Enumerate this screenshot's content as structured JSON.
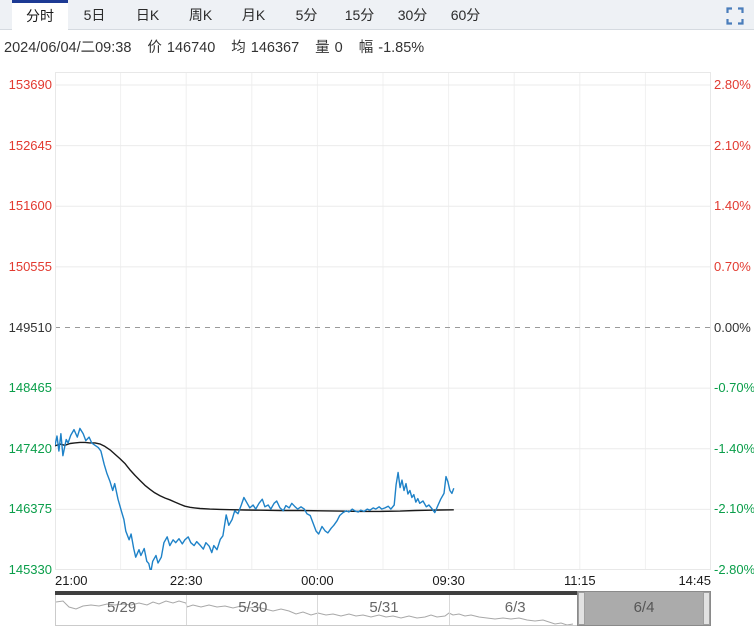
{
  "colors": {
    "up": "#e23a30",
    "down": "#0a9e4a",
    "price_line": "#1e82c8",
    "avg_line": "#1a1a1a",
    "active_tab_accent": "#1d3a94",
    "icon_blue": "#4a7dbb",
    "grid": "#ebebeb",
    "dashed_mid": "#9a9a9a"
  },
  "tabs": {
    "items": [
      {
        "label": "分时",
        "active": true
      },
      {
        "label": "5日",
        "active": false
      },
      {
        "label": "日K",
        "active": false
      },
      {
        "label": "周K",
        "active": false
      },
      {
        "label": "月K",
        "active": false
      },
      {
        "label": "5分",
        "active": false
      },
      {
        "label": "15分",
        "active": false
      },
      {
        "label": "30分",
        "active": false
      },
      {
        "label": "60分",
        "active": false
      }
    ],
    "fullscreen_icon": "fullscreen"
  },
  "info_bar": {
    "datetime": "2024/06/04/二09:38",
    "price_label": "价",
    "price": "146740",
    "avg_label": "均",
    "avg": "146367",
    "volume_label": "量",
    "volume": "0",
    "change_label": "幅",
    "change": "-1.85%"
  },
  "chart_data": {
    "type": "line",
    "title": "intraday time-share chart",
    "x_axis": {
      "labels": [
        "21:00",
        "22:30",
        "00:00",
        "09:30",
        "11:15",
        "14:45"
      ],
      "label_positions": [
        0,
        0.2,
        0.4,
        0.6,
        0.8,
        1
      ],
      "gridline_count": 11
    },
    "y_axis": {
      "price_levels": [
        "153690",
        "152645",
        "151600",
        "150555",
        "149510",
        "148465",
        "147420",
        "146375",
        "145330"
      ],
      "pct_levels": [
        "2.80%",
        "2.10%",
        "1.40%",
        "0.70%",
        "0.00%",
        "-0.70%",
        "-1.40%",
        "-2.10%",
        "-2.80%"
      ],
      "ylim": [
        145330,
        153690
      ],
      "mid_price": 149510,
      "grid": true
    },
    "legend_position": "none",
    "series": [
      {
        "name": "price",
        "color_key": "price_line",
        "points": [
          [
            0.0,
            147480
          ],
          [
            0.003,
            147640
          ],
          [
            0.006,
            147380
          ],
          [
            0.009,
            147680
          ],
          [
            0.012,
            147300
          ],
          [
            0.017,
            147580
          ],
          [
            0.02,
            147520
          ],
          [
            0.024,
            147650
          ],
          [
            0.029,
            147750
          ],
          [
            0.034,
            147620
          ],
          [
            0.038,
            147770
          ],
          [
            0.043,
            147680
          ],
          [
            0.047,
            147560
          ],
          [
            0.052,
            147620
          ],
          [
            0.056,
            147520
          ],
          [
            0.061,
            147480
          ],
          [
            0.066,
            147440
          ],
          [
            0.07,
            147380
          ],
          [
            0.075,
            147150
          ],
          [
            0.079,
            147000
          ],
          [
            0.084,
            146850
          ],
          [
            0.088,
            146700
          ],
          [
            0.091,
            146820
          ],
          [
            0.096,
            146550
          ],
          [
            0.101,
            146350
          ],
          [
            0.105,
            146200
          ],
          [
            0.108,
            146000
          ],
          [
            0.113,
            145850
          ],
          [
            0.116,
            145950
          ],
          [
            0.12,
            145700
          ],
          [
            0.123,
            145550
          ],
          [
            0.128,
            145680
          ],
          [
            0.131,
            145580
          ],
          [
            0.136,
            145700
          ],
          [
            0.14,
            145480
          ],
          [
            0.143,
            145440
          ],
          [
            0.146,
            145290
          ],
          [
            0.149,
            145480
          ],
          [
            0.154,
            145580
          ],
          [
            0.157,
            145450
          ],
          [
            0.162,
            145550
          ],
          [
            0.166,
            145800
          ],
          [
            0.171,
            145900
          ],
          [
            0.175,
            145750
          ],
          [
            0.18,
            145850
          ],
          [
            0.184,
            145800
          ],
          [
            0.189,
            145870
          ],
          [
            0.194,
            145780
          ],
          [
            0.198,
            145850
          ],
          [
            0.203,
            145900
          ],
          [
            0.207,
            145800
          ],
          [
            0.212,
            145750
          ],
          [
            0.216,
            145820
          ],
          [
            0.221,
            145760
          ],
          [
            0.226,
            145690
          ],
          [
            0.23,
            145800
          ],
          [
            0.235,
            145740
          ],
          [
            0.239,
            145630
          ],
          [
            0.242,
            145750
          ],
          [
            0.247,
            145680
          ],
          [
            0.252,
            145860
          ],
          [
            0.256,
            145920
          ],
          [
            0.261,
            146280
          ],
          [
            0.265,
            146100
          ],
          [
            0.27,
            146200
          ],
          [
            0.274,
            146350
          ],
          [
            0.279,
            146300
          ],
          [
            0.284,
            146450
          ],
          [
            0.288,
            146580
          ],
          [
            0.293,
            146480
          ],
          [
            0.297,
            146400
          ],
          [
            0.302,
            146450
          ],
          [
            0.306,
            146380
          ],
          [
            0.311,
            146480
          ],
          [
            0.316,
            146550
          ],
          [
            0.32,
            146420
          ],
          [
            0.325,
            146450
          ],
          [
            0.329,
            146380
          ],
          [
            0.334,
            146480
          ],
          [
            0.338,
            146520
          ],
          [
            0.343,
            146400
          ],
          [
            0.348,
            146350
          ],
          [
            0.352,
            146440
          ],
          [
            0.357,
            146400
          ],
          [
            0.361,
            146480
          ],
          [
            0.366,
            146420
          ],
          [
            0.37,
            146380
          ],
          [
            0.375,
            146420
          ],
          [
            0.38,
            146380
          ],
          [
            0.384,
            146300
          ],
          [
            0.389,
            146270
          ],
          [
            0.393,
            146150
          ],
          [
            0.398,
            146000
          ],
          [
            0.402,
            145950
          ],
          [
            0.407,
            146080
          ],
          [
            0.412,
            146000
          ],
          [
            0.416,
            145970
          ],
          [
            0.421,
            146050
          ],
          [
            0.425,
            146100
          ],
          [
            0.43,
            146180
          ],
          [
            0.434,
            146270
          ],
          [
            0.439,
            146320
          ],
          [
            0.444,
            146350
          ],
          [
            0.448,
            146330
          ],
          [
            0.453,
            146380
          ],
          [
            0.457,
            146350
          ],
          [
            0.462,
            146330
          ],
          [
            0.466,
            146360
          ],
          [
            0.471,
            146340
          ],
          [
            0.476,
            146380
          ],
          [
            0.48,
            146360
          ],
          [
            0.485,
            146400
          ],
          [
            0.489,
            146380
          ],
          [
            0.494,
            146420
          ],
          [
            0.498,
            146380
          ],
          [
            0.503,
            146400
          ],
          [
            0.508,
            146430
          ],
          [
            0.512,
            146380
          ],
          [
            0.517,
            146450
          ],
          [
            0.52,
            146800
          ],
          [
            0.523,
            147010
          ],
          [
            0.526,
            146750
          ],
          [
            0.529,
            146880
          ],
          [
            0.532,
            146700
          ],
          [
            0.535,
            146820
          ],
          [
            0.538,
            146640
          ],
          [
            0.541,
            146700
          ],
          [
            0.544,
            146580
          ],
          [
            0.547,
            146630
          ],
          [
            0.55,
            146500
          ],
          [
            0.553,
            146560
          ],
          [
            0.556,
            146480
          ],
          [
            0.561,
            146520
          ],
          [
            0.566,
            146420
          ],
          [
            0.57,
            146450
          ],
          [
            0.575,
            146380
          ],
          [
            0.579,
            146320
          ],
          [
            0.584,
            146450
          ],
          [
            0.588,
            146550
          ],
          [
            0.593,
            146650
          ],
          [
            0.596,
            146940
          ],
          [
            0.599,
            146850
          ],
          [
            0.602,
            146700
          ],
          [
            0.605,
            146650
          ],
          [
            0.608,
            146740
          ]
        ]
      },
      {
        "name": "average",
        "color_key": "avg_line",
        "points": [
          [
            0.0,
            147470
          ],
          [
            0.008,
            147500
          ],
          [
            0.015,
            147480
          ],
          [
            0.023,
            147510
          ],
          [
            0.03,
            147520
          ],
          [
            0.038,
            147530
          ],
          [
            0.046,
            147530
          ],
          [
            0.053,
            147520
          ],
          [
            0.061,
            147520
          ],
          [
            0.069,
            147500
          ],
          [
            0.076,
            147460
          ],
          [
            0.084,
            147400
          ],
          [
            0.091,
            147330
          ],
          [
            0.099,
            147250
          ],
          [
            0.107,
            147160
          ],
          [
            0.114,
            147060
          ],
          [
            0.122,
            146960
          ],
          [
            0.13,
            146870
          ],
          [
            0.137,
            146790
          ],
          [
            0.145,
            146720
          ],
          [
            0.152,
            146660
          ],
          [
            0.16,
            146610
          ],
          [
            0.168,
            146570
          ],
          [
            0.175,
            146540
          ],
          [
            0.183,
            146500
          ],
          [
            0.191,
            146460
          ],
          [
            0.198,
            146430
          ],
          [
            0.206,
            146410
          ],
          [
            0.213,
            146400
          ],
          [
            0.221,
            146390
          ],
          [
            0.236,
            146380
          ],
          [
            0.252,
            146375
          ],
          [
            0.267,
            146370
          ],
          [
            0.29,
            146365
          ],
          [
            0.313,
            146360
          ],
          [
            0.343,
            146355
          ],
          [
            0.373,
            146355
          ],
          [
            0.404,
            146350
          ],
          [
            0.434,
            146345
          ],
          [
            0.465,
            146340
          ],
          [
            0.495,
            146340
          ],
          [
            0.526,
            146345
          ],
          [
            0.549,
            146355
          ],
          [
            0.572,
            146360
          ],
          [
            0.587,
            146365
          ],
          [
            0.608,
            146367
          ]
        ]
      }
    ]
  },
  "navigator": {
    "days": [
      {
        "label": "5/29",
        "selected": false
      },
      {
        "label": "5/30",
        "selected": false
      },
      {
        "label": "5/31",
        "selected": false
      },
      {
        "label": "6/3",
        "selected": false
      },
      {
        "label": "6/4",
        "selected": true
      }
    ],
    "label_centers": [
      0.1,
      0.3,
      0.5,
      0.7,
      0.9
    ],
    "separators": [
      0.2,
      0.4,
      0.6
    ],
    "selected_range": [
      0.8,
      1.0
    ],
    "sparkline": [
      [
        0,
        10
      ],
      [
        7,
        9
      ],
      [
        13,
        15
      ],
      [
        20,
        17
      ],
      [
        27,
        14
      ],
      [
        35,
        13
      ],
      [
        43,
        14
      ],
      [
        51,
        12
      ],
      [
        59,
        13
      ],
      [
        67,
        12
      ],
      [
        75,
        13
      ],
      [
        83,
        11
      ],
      [
        91,
        13
      ],
      [
        97,
        10
      ],
      [
        103,
        12
      ],
      [
        110,
        9
      ],
      [
        117,
        11
      ],
      [
        123,
        9
      ],
      [
        130,
        11
      ],
      [
        131,
        15
      ],
      [
        137,
        13
      ],
      [
        145,
        15
      ],
      [
        153,
        13
      ],
      [
        161,
        15
      ],
      [
        169,
        14
      ],
      [
        177,
        16
      ],
      [
        185,
        14
      ],
      [
        193,
        16
      ],
      [
        201,
        15
      ],
      [
        209,
        17
      ],
      [
        217,
        19
      ],
      [
        225,
        17
      ],
      [
        233,
        19
      ],
      [
        240,
        22
      ],
      [
        247,
        20
      ],
      [
        255,
        23
      ],
      [
        262,
        21
      ],
      [
        270,
        23
      ],
      [
        277,
        22
      ],
      [
        285,
        24
      ],
      [
        293,
        22
      ],
      [
        300,
        24
      ],
      [
        307,
        23
      ],
      [
        315,
        25
      ],
      [
        323,
        23
      ],
      [
        330,
        25
      ],
      [
        337,
        24
      ],
      [
        345,
        26
      ],
      [
        353,
        24
      ],
      [
        361,
        26
      ],
      [
        369,
        25
      ],
      [
        375,
        23
      ],
      [
        381,
        25
      ],
      [
        389,
        24
      ],
      [
        393,
        21
      ],
      [
        397,
        23
      ],
      [
        403,
        22
      ],
      [
        409,
        24
      ],
      [
        415,
        23
      ],
      [
        423,
        25
      ],
      [
        431,
        26
      ],
      [
        439,
        27
      ],
      [
        447,
        26
      ],
      [
        455,
        27
      ],
      [
        463,
        26
      ],
      [
        471,
        28
      ],
      [
        479,
        29
      ],
      [
        487,
        28
      ],
      [
        493,
        30
      ],
      [
        499,
        32
      ],
      [
        505,
        31
      ],
      [
        511,
        33
      ],
      [
        517,
        32
      ]
    ]
  }
}
